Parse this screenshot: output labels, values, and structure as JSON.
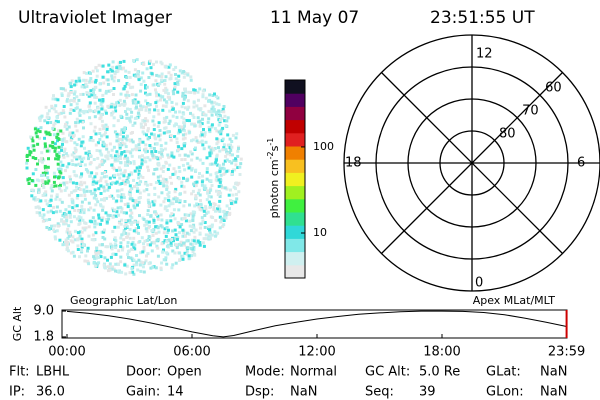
{
  "header": {
    "title": "Ultraviolet Imager",
    "date": "11 May 07",
    "time": "23:51:55 UT"
  },
  "colorbar": {
    "label": [
      "photon cm",
      "-2",
      "s",
      "-1"
    ],
    "scale": "log",
    "range": [
      3,
      600
    ],
    "ticks": [
      10,
      100
    ]
  },
  "polar": {
    "hour_labels": [
      "12",
      "18",
      "6",
      "0"
    ],
    "rings": [
      80,
      70,
      60
    ],
    "outer_lat": 50
  },
  "chart_data": {
    "type": "line",
    "title_left": "Geographic Lat/Lon",
    "title_right": "Apex MLat/MLT",
    "ylabel": "GC Alt",
    "x": [
      0,
      1,
      2,
      3,
      4,
      5,
      6,
      7,
      7.5,
      8,
      9,
      10,
      11,
      12,
      13,
      14,
      15,
      16,
      17,
      18,
      19,
      20,
      21,
      22,
      23,
      23.98
    ],
    "values": [
      8.9,
      8.4,
      7.7,
      6.8,
      5.7,
      4.5,
      3.2,
      2.1,
      1.8,
      2.2,
      3.6,
      4.9,
      5.9,
      6.8,
      7.5,
      8.1,
      8.5,
      8.8,
      9.0,
      9.0,
      8.9,
      8.6,
      8.0,
      7.0,
      5.9,
      4.7
    ],
    "color": "#000000",
    "marker_color": "#cc0000",
    "xlim": [
      0,
      24
    ],
    "ylim": [
      1.5,
      9.3
    ],
    "xticks": [
      {
        "value": 0,
        "label": "00:00"
      },
      {
        "value": 6,
        "label": "06:00"
      },
      {
        "value": 12,
        "label": "12:00"
      },
      {
        "value": 18,
        "label": "18:00"
      },
      {
        "value": 23.98,
        "label": "23:59"
      }
    ],
    "yticks": [
      {
        "value": 9.0,
        "label": "9.0"
      },
      {
        "value": 1.8,
        "label": "1.8"
      }
    ]
  },
  "info": {
    "rows": [
      [
        {
          "label": "Flt:",
          "value": "LBHL"
        },
        {
          "label": "Door:",
          "value": "Open"
        },
        {
          "label": "Mode:",
          "value": "Normal"
        },
        {
          "label": "GC Alt:",
          "value": "5.0 Re"
        },
        {
          "label": "GLat:",
          "value": "NaN"
        }
      ],
      [
        {
          "label": "IP:",
          "value": "36.0"
        },
        {
          "label": "Gain:",
          "value": "14"
        },
        {
          "label": "Dsp:",
          "value": "NaN"
        },
        {
          "label": "Seq:",
          "value": "39"
        },
        {
          "label": "GLon:",
          "value": "NaN"
        }
      ]
    ]
  }
}
